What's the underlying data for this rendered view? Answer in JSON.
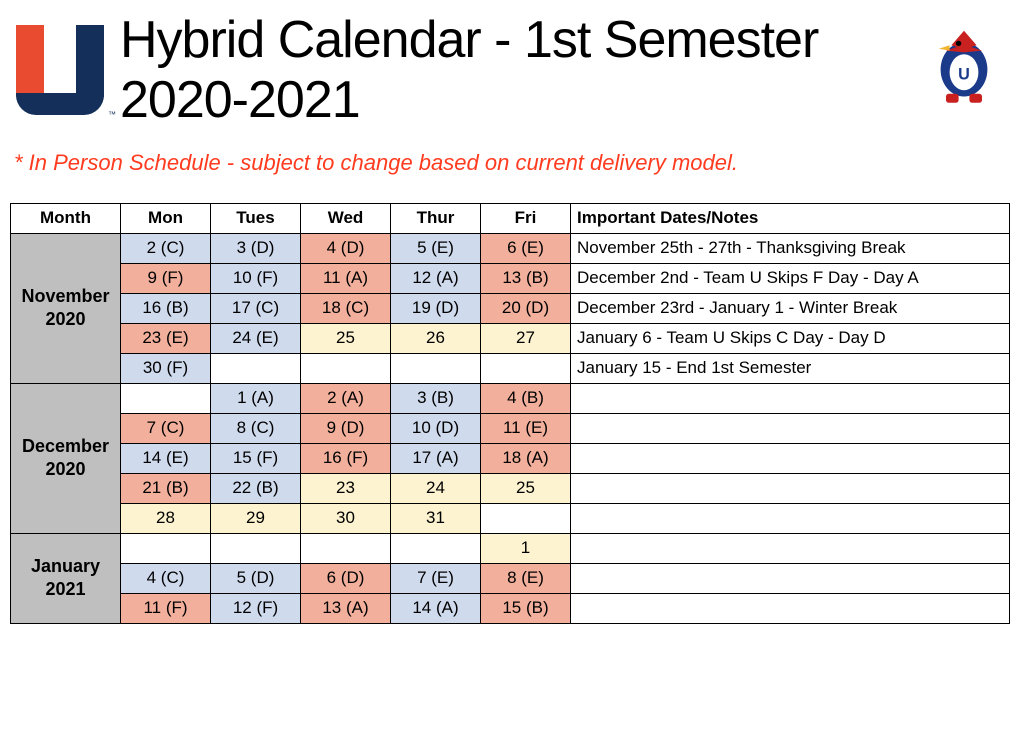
{
  "title": "Hybrid Calendar - 1st Semester 2020-2021",
  "subtitle": "* In Person Schedule - subject to change based on current delivery model.",
  "colors": {
    "blue": "#cfdaed",
    "salmon": "#f2b09c",
    "yellow": "#fdf3d0",
    "white": "#ffffff",
    "month_bg": "#bfbfbf",
    "subtitle": "#ff3b1f",
    "logo_red": "#e84b30",
    "logo_navy": "#14305a"
  },
  "columns": [
    "Month",
    "Mon",
    "Tues",
    "Wed",
    "Thur",
    "Fri",
    "Important Dates/Notes"
  ],
  "months": [
    {
      "label": "November 2020",
      "rows": [
        {
          "cells": [
            {
              "text": "2 (C)",
              "color": "blue"
            },
            {
              "text": "3 (D)",
              "color": "blue"
            },
            {
              "text": "4 (D)",
              "color": "salmon"
            },
            {
              "text": "5 (E)",
              "color": "blue"
            },
            {
              "text": "6 (E)",
              "color": "salmon"
            }
          ],
          "note": "November 25th - 27th - Thanksgiving Break"
        },
        {
          "cells": [
            {
              "text": "9 (F)",
              "color": "salmon"
            },
            {
              "text": "10 (F)",
              "color": "blue"
            },
            {
              "text": "11 (A)",
              "color": "salmon"
            },
            {
              "text": "12 (A)",
              "color": "blue"
            },
            {
              "text": "13 (B)",
              "color": "salmon"
            }
          ],
          "note": "December 2nd - Team U Skips F Day - Day A"
        },
        {
          "cells": [
            {
              "text": "16 (B)",
              "color": "blue"
            },
            {
              "text": "17 (C)",
              "color": "blue"
            },
            {
              "text": "18 (C)",
              "color": "salmon"
            },
            {
              "text": "19 (D)",
              "color": "blue"
            },
            {
              "text": "20 (D)",
              "color": "salmon"
            }
          ],
          "note": "December 23rd - January 1 - Winter Break"
        },
        {
          "cells": [
            {
              "text": "23 (E)",
              "color": "salmon"
            },
            {
              "text": "24 (E)",
              "color": "blue"
            },
            {
              "text": "25",
              "color": "yellow"
            },
            {
              "text": "26",
              "color": "yellow"
            },
            {
              "text": "27",
              "color": "yellow"
            }
          ],
          "note": "January 6 - Team U Skips C Day - Day D"
        },
        {
          "cells": [
            {
              "text": "30 (F)",
              "color": "blue"
            },
            {
              "text": "",
              "color": "white"
            },
            {
              "text": "",
              "color": "white"
            },
            {
              "text": "",
              "color": "white"
            },
            {
              "text": "",
              "color": "white"
            }
          ],
          "note": "January 15 - End 1st Semester"
        }
      ]
    },
    {
      "label": "December 2020",
      "rows": [
        {
          "cells": [
            {
              "text": "",
              "color": "white"
            },
            {
              "text": "1 (A)",
              "color": "blue"
            },
            {
              "text": "2 (A)",
              "color": "salmon"
            },
            {
              "text": "3 (B)",
              "color": "blue"
            },
            {
              "text": "4 (B)",
              "color": "salmon"
            }
          ],
          "note": ""
        },
        {
          "cells": [
            {
              "text": "7 (C)",
              "color": "salmon"
            },
            {
              "text": "8 (C)",
              "color": "blue"
            },
            {
              "text": "9 (D)",
              "color": "salmon"
            },
            {
              "text": "10 (D)",
              "color": "blue"
            },
            {
              "text": "11 (E)",
              "color": "salmon"
            }
          ],
          "note": ""
        },
        {
          "cells": [
            {
              "text": "14 (E)",
              "color": "blue"
            },
            {
              "text": "15 (F)",
              "color": "blue"
            },
            {
              "text": "16 (F)",
              "color": "salmon"
            },
            {
              "text": "17 (A)",
              "color": "blue"
            },
            {
              "text": "18 (A)",
              "color": "salmon"
            }
          ],
          "note": ""
        },
        {
          "cells": [
            {
              "text": "21 (B)",
              "color": "salmon"
            },
            {
              "text": "22 (B)",
              "color": "blue"
            },
            {
              "text": "23",
              "color": "yellow"
            },
            {
              "text": "24",
              "color": "yellow"
            },
            {
              "text": "25",
              "color": "yellow"
            }
          ],
          "note": ""
        },
        {
          "cells": [
            {
              "text": "28",
              "color": "yellow"
            },
            {
              "text": "29",
              "color": "yellow"
            },
            {
              "text": "30",
              "color": "yellow"
            },
            {
              "text": "31",
              "color": "yellow"
            },
            {
              "text": "",
              "color": "white"
            }
          ],
          "note": ""
        }
      ]
    },
    {
      "label": "January 2021",
      "rows": [
        {
          "cells": [
            {
              "text": "",
              "color": "white"
            },
            {
              "text": "",
              "color": "white"
            },
            {
              "text": "",
              "color": "white"
            },
            {
              "text": "",
              "color": "white"
            },
            {
              "text": "1",
              "color": "yellow"
            }
          ],
          "note": ""
        },
        {
          "cells": [
            {
              "text": "4 (C)",
              "color": "blue"
            },
            {
              "text": "5 (D)",
              "color": "blue"
            },
            {
              "text": "6 (D)",
              "color": "salmon"
            },
            {
              "text": "7 (E)",
              "color": "blue"
            },
            {
              "text": "8 (E)",
              "color": "salmon"
            }
          ],
          "note": ""
        },
        {
          "cells": [
            {
              "text": "11 (F)",
              "color": "salmon"
            },
            {
              "text": "12 (F)",
              "color": "blue"
            },
            {
              "text": "13 (A)",
              "color": "salmon"
            },
            {
              "text": "14 (A)",
              "color": "blue"
            },
            {
              "text": "15 (B)",
              "color": "salmon"
            }
          ],
          "note": ""
        }
      ]
    }
  ]
}
